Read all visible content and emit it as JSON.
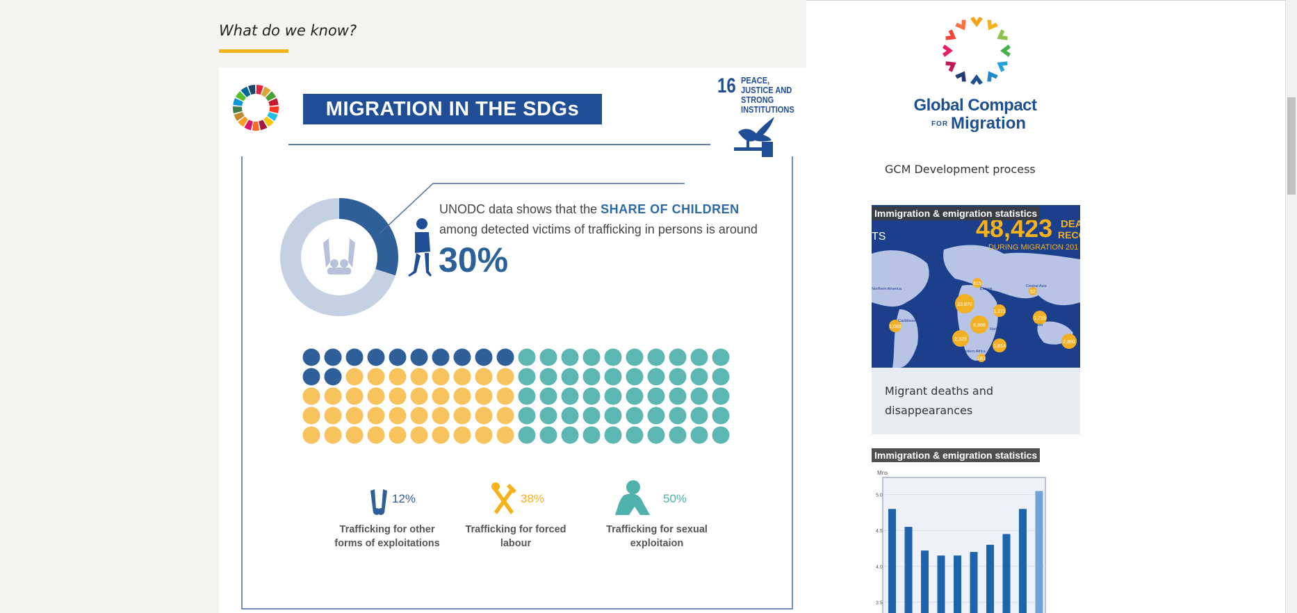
{
  "section": {
    "title": "What do we know?"
  },
  "infographic": {
    "banner": "MIGRATION IN THE SDGs",
    "goal": {
      "number": "16",
      "text": "PEACE, JUSTICE AND STRONG INSTITUTIONS"
    },
    "stat": {
      "prefix": "UNODC data shows that the",
      "highlight": "SHARE OF CHILDREN",
      "suffix": "among detected victims of trafficking in persons is around",
      "value": "30%",
      "share": 0.3
    },
    "dots": {
      "rows": 5,
      "cols": 20,
      "dark_count": 12,
      "yellow_count": 38,
      "teal_count": 50
    },
    "legend": [
      {
        "pct": "12%",
        "label": "Trafficking for other forms of exploitations",
        "color": "#2f5f99"
      },
      {
        "pct": "38%",
        "label": "Trafficking for forced labour",
        "color": "#f6b21b"
      },
      {
        "pct": "50%",
        "label": "Trafficking for sexual exploitaion",
        "color": "#4fb2ad"
      }
    ],
    "colors": {
      "dark": "#2f5f99",
      "yellow": "#f8c35c",
      "teal": "#5cb6b2",
      "light": "#c3d1e3"
    }
  },
  "sidebar": {
    "logo": {
      "line1": "Global Compact",
      "small": "FOR",
      "line2": "Migration"
    },
    "link": "GCM Development process",
    "card1": {
      "badge": "Immigration & emigration statistics",
      "title": "Migrant deaths and disappearances",
      "map": {
        "big_number": "48,423",
        "big_suffix": "DEA",
        "sub1": "RECO",
        "sub2": "DURING MIGRATION 201",
        "left_label": "TS",
        "bubbles": [
          "23,970",
          "6,866",
          "2,329",
          "1,814",
          "1,271",
          "1,719",
          "2,890",
          "1,083",
          "815",
          "52",
          "181"
        ],
        "regions": [
          "Northern America",
          "Mediterranean",
          "Europe",
          "Central Asia",
          "Western Asia",
          "Caribbean",
          "Northern Africa",
          "Southern Asia",
          "Western Africa",
          "Eastern Africa",
          "Middle Africa"
        ]
      }
    },
    "card2": {
      "badge": "Immigration & emigration statistics",
      "chart_data": {
        "type": "bar",
        "ylabel": "Mns",
        "yticks": [
          "5.0",
          "4.5",
          "4.0",
          "3.5"
        ],
        "values": [
          4.8,
          4.55,
          4.22,
          4.15,
          4.15,
          4.2,
          4.3,
          4.45,
          4.8,
          5.05
        ]
      }
    }
  }
}
